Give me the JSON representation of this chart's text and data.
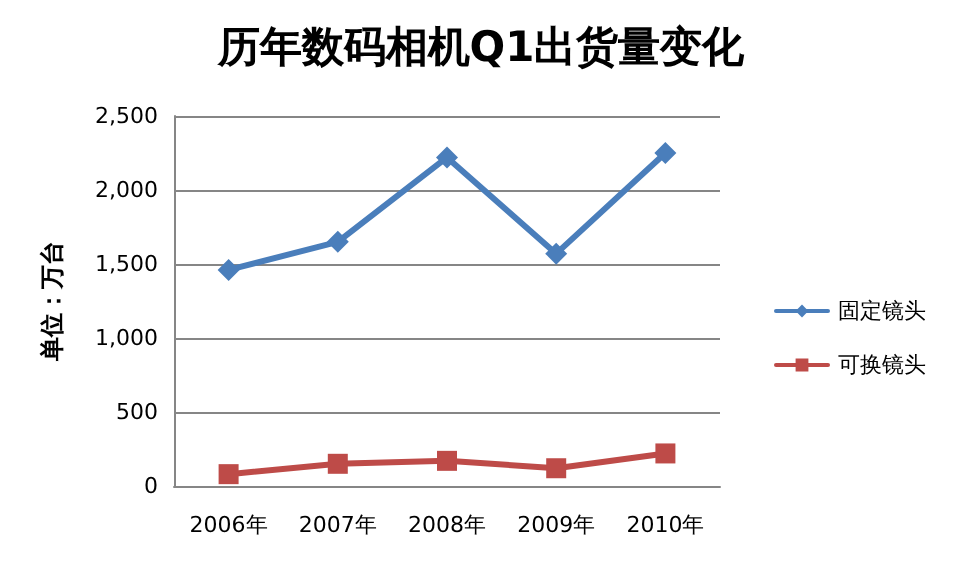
{
  "chart_data": {
    "type": "line",
    "title": "历年数码相机Q1出货量变化",
    "ylabel": "单位：万台",
    "categories": [
      "2006年",
      "2007年",
      "2008年",
      "2009年",
      "2010年"
    ],
    "series": [
      {
        "name": "固定镜头",
        "color": "#4a7ebb",
        "marker": "diamond",
        "values": [
          1460,
          1650,
          2220,
          1570,
          2250
        ]
      },
      {
        "name": "可换镜头",
        "color": "#be4b48",
        "marker": "square",
        "values": [
          80,
          150,
          170,
          120,
          220
        ]
      }
    ],
    "ylim": [
      0,
      2500
    ],
    "yticks": [
      0,
      500,
      {
        "value": 1000,
        "label": "1,000"
      },
      {
        "value": 1500,
        "label": "1,500"
      },
      {
        "value": 2000,
        "label": "2,000"
      },
      {
        "value": 2500,
        "label": "2,500"
      }
    ],
    "grid": "y",
    "legend": "right"
  }
}
